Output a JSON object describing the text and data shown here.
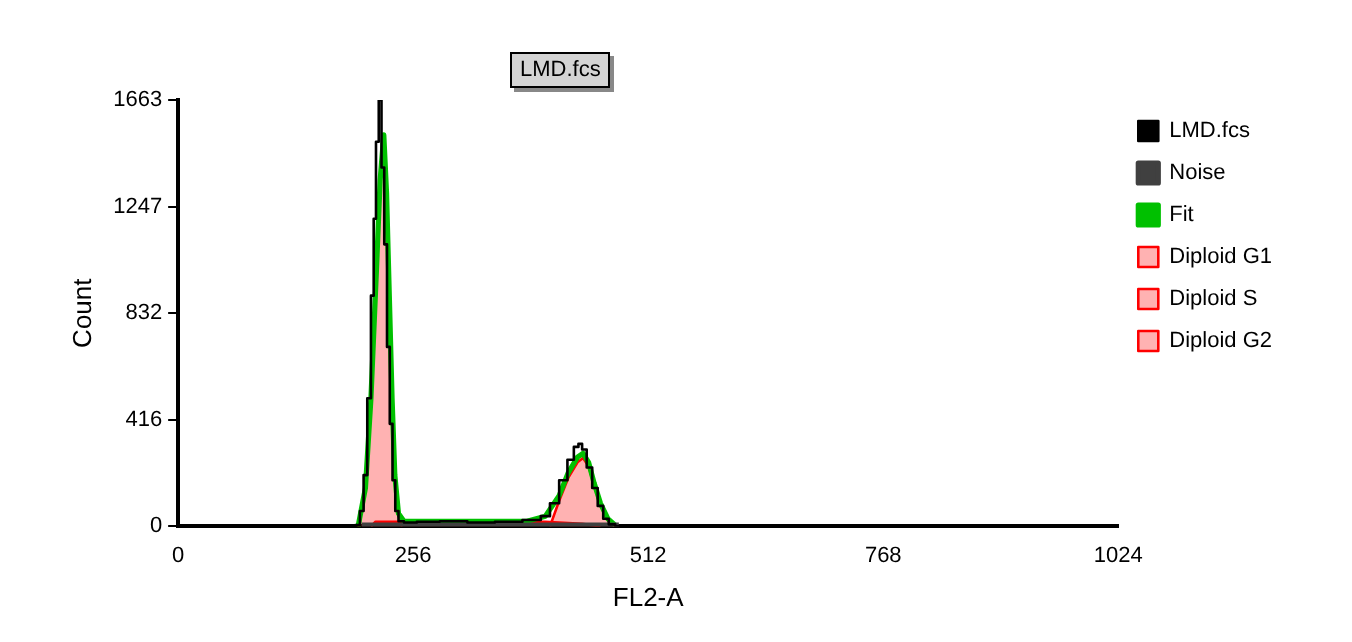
{
  "chart_data": {
    "type": "line",
    "title": "LMD.fcs",
    "xlabel": "FL2-A",
    "ylabel": "Count",
    "xlim": [
      0,
      1024
    ],
    "xticks": [
      0,
      256,
      512,
      768,
      1024
    ],
    "ylim": [
      0,
      1663
    ],
    "yticks": [
      0,
      416,
      832,
      1247,
      1663
    ],
    "grid": false,
    "legend": "top right",
    "marker": "none",
    "series": [
      {
        "name": "LMD.fcs",
        "type": "step",
        "color": "#000000",
        "x": [
          0,
          190,
          196,
          200,
          204,
          208,
          212,
          214,
          217,
          220,
          223,
          226,
          229,
          232,
          235,
          238,
          242,
          250,
          270,
          300,
          330,
          360,
          390,
          400,
          410,
          420,
          428,
          434,
          438,
          442,
          448,
          454,
          460,
          466,
          472,
          480,
          1024
        ],
        "values": [
          0,
          0,
          5,
          60,
          200,
          500,
          900,
          1200,
          1500,
          1663,
          1400,
          1100,
          700,
          400,
          180,
          60,
          20,
          15,
          18,
          20,
          15,
          18,
          25,
          40,
          90,
          180,
          260,
          310,
          322,
          300,
          230,
          150,
          80,
          30,
          8,
          0,
          0
        ]
      },
      {
        "name": "Noise",
        "type": "line",
        "color": "#404040",
        "x": [
          200,
          480
        ],
        "values": [
          5,
          5
        ]
      },
      {
        "name": "Fit",
        "type": "line",
        "color": "#00c000",
        "x": [
          196,
          204,
          210,
          216,
          220,
          224,
          227,
          230,
          233,
          236,
          240,
          246,
          300,
          380,
          400,
          415,
          425,
          435,
          441,
          447,
          453,
          460,
          468,
          476
        ],
        "values": [
          0,
          150,
          500,
          1000,
          1350,
          1527,
          1300,
          900,
          500,
          200,
          50,
          20,
          20,
          20,
          40,
          120,
          210,
          270,
          285,
          250,
          170,
          90,
          30,
          5
        ]
      },
      {
        "name": "Diploid G1",
        "type": "area",
        "color": "#ff0000",
        "x": [
          196,
          204,
          210,
          216,
          220,
          224,
          227,
          230,
          233,
          236,
          240,
          244
        ],
        "values": [
          0,
          140,
          480,
          980,
          1330,
          1510,
          1290,
          890,
          490,
          190,
          40,
          0
        ]
      },
      {
        "name": "Diploid S",
        "type": "area",
        "color": "#ff0000",
        "x": [
          210,
          215,
          400,
          440,
          460
        ],
        "values": [
          0,
          18,
          18,
          10,
          0
        ]
      },
      {
        "name": "Diploid G2",
        "type": "area",
        "color": "#ff0000",
        "x": [
          405,
          415,
          425,
          435,
          441,
          447,
          453,
          460,
          468,
          476
        ],
        "values": [
          0,
          100,
          190,
          250,
          267,
          235,
          160,
          80,
          25,
          0
        ]
      }
    ]
  }
}
